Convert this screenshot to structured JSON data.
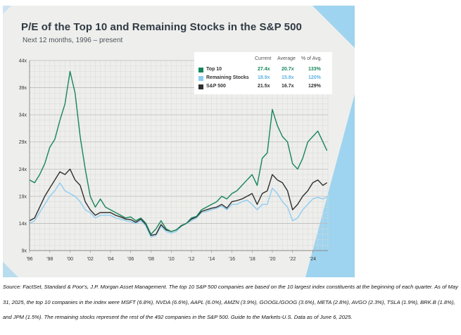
{
  "chart_data": {
    "type": "line",
    "title": "P/E of the Top 10 and Remaining Stocks in the S&P 500",
    "subtitle": "Next 12 months, 1996 – present",
    "xlabel": "",
    "ylabel": "",
    "xlim": [
      1996,
      2025.5
    ],
    "ylim": [
      9,
      44
    ],
    "y_ticks": [
      9,
      14,
      19,
      24,
      29,
      34,
      39,
      44
    ],
    "y_tick_labels": [
      "9x",
      "14x",
      "19x",
      "24x",
      "29x",
      "34x",
      "39x",
      "44x"
    ],
    "x_ticks": [
      1996,
      1998,
      2000,
      2002,
      2004,
      2006,
      2008,
      2010,
      2012,
      2014,
      2016,
      2018,
      2020,
      2022,
      2024
    ],
    "x_tick_labels": [
      "'96",
      "'98",
      "'00",
      "'02",
      "'04",
      "'06",
      "'08",
      "'10",
      "'12",
      "'14",
      "'16",
      "'18",
      "'20",
      "'22",
      "'24"
    ],
    "grid": true,
    "legend_position": "top-right",
    "legend": {
      "headers": [
        "Current",
        "Average",
        "% of Avg."
      ],
      "rows": [
        {
          "name": "Top 10",
          "current": "27.4x",
          "average": "20.7x",
          "pct": "133%"
        },
        {
          "name": "Remaining Stocks",
          "current": "18.9x",
          "average": "15.8x",
          "pct": "120%"
        },
        {
          "name": "S&P 500",
          "current": "21.5x",
          "average": "16.7x",
          "pct": "129%"
        }
      ]
    },
    "x": [
      1996,
      1996.5,
      1997,
      1997.5,
      1998,
      1998.5,
      1999,
      1999.5,
      2000,
      2000.5,
      2001,
      2001.5,
      2002,
      2002.5,
      2003,
      2003.5,
      2004,
      2004.5,
      2005,
      2005.5,
      2006,
      2006.5,
      2007,
      2007.5,
      2008,
      2008.5,
      2009,
      2009.5,
      2010,
      2010.5,
      2011,
      2011.5,
      2012,
      2012.5,
      2013,
      2013.5,
      2014,
      2014.5,
      2015,
      2015.5,
      2016,
      2016.5,
      2017,
      2017.5,
      2018,
      2018.5,
      2019,
      2019.5,
      2020,
      2020.5,
      2021,
      2021.5,
      2022,
      2022.5,
      2023,
      2023.5,
      2024,
      2024.5,
      2025,
      2025.4
    ],
    "series": [
      {
        "name": "Top 10",
        "color": "#16865a",
        "values": [
          22,
          21.5,
          23,
          25,
          28,
          29.5,
          33,
          36,
          42,
          38,
          30,
          24,
          19,
          17,
          18.5,
          17,
          16.5,
          16,
          15.5,
          15,
          15.2,
          14.5,
          15,
          14,
          12,
          13,
          14.5,
          13,
          12.5,
          12.8,
          13.5,
          14,
          15,
          15.3,
          16.5,
          17,
          17.5,
          18,
          19,
          18.5,
          19.5,
          20,
          21,
          22,
          23,
          21,
          26,
          27,
          35,
          32,
          30,
          29,
          25,
          24,
          26,
          29,
          30,
          31,
          29,
          27.4
        ]
      },
      {
        "name": "Remaining Stocks",
        "color": "#8ecdf1",
        "values": [
          14,
          14.5,
          16,
          17.5,
          19,
          20,
          21.5,
          20,
          19.5,
          19,
          18,
          16.5,
          16,
          15,
          15.5,
          15.5,
          15.5,
          15,
          14.8,
          14.5,
          14.3,
          14,
          14.5,
          13.5,
          11.5,
          11.8,
          13.5,
          12.5,
          12.2,
          12.5,
          13.5,
          14,
          14.5,
          15,
          16,
          16.2,
          16.5,
          16.8,
          17.2,
          16.5,
          17.5,
          17.5,
          18,
          18.3,
          17.5,
          16.5,
          17.5,
          17.5,
          20.5,
          19.5,
          18,
          17,
          14.5,
          15,
          16.5,
          17.5,
          18.5,
          18.8,
          18.5,
          18.9
        ]
      },
      {
        "name": "S&P 500",
        "color": "#2f2f2f",
        "values": [
          14.5,
          15,
          17,
          19,
          20.5,
          22,
          23.5,
          23,
          24,
          22,
          21,
          18,
          16.5,
          15.5,
          16,
          16,
          16,
          15.5,
          15.2,
          14.8,
          14.7,
          14.2,
          14.8,
          13.8,
          11.8,
          12,
          13.8,
          12.8,
          12.5,
          12.8,
          13.6,
          14,
          14.8,
          15.2,
          16.2,
          16.5,
          16.8,
          17,
          17.5,
          16.8,
          18,
          18.2,
          18.5,
          19,
          19.5,
          17.5,
          19.5,
          20,
          23,
          22,
          21.5,
          20,
          16.5,
          17.5,
          19,
          20,
          21.5,
          22,
          21,
          21.5
        ]
      }
    ],
    "source_note": "Source: FactSet, Standard & Poor's, J.P. Morgan Asset Management. The top 10 S&P 500 companies are based on the 10 largest index constituents at the beginning of each quarter. As of May 31, 2025, the top 10 companies in the index were MSFT (6.8%), NVDA (6.6%), AAPL (6.0%), AMZN (3.9%), GOOGL/GOOG (3.6%), META (2.8%), AVGO (2.3%), TSLA (1.9%), BRK.B (1.8%), and JPM (1.5%). The remaining stocks represent the rest of the 492 companies in the S&P 500. Guide to the Markets-U.S. Data as of June 6, 2025."
  }
}
